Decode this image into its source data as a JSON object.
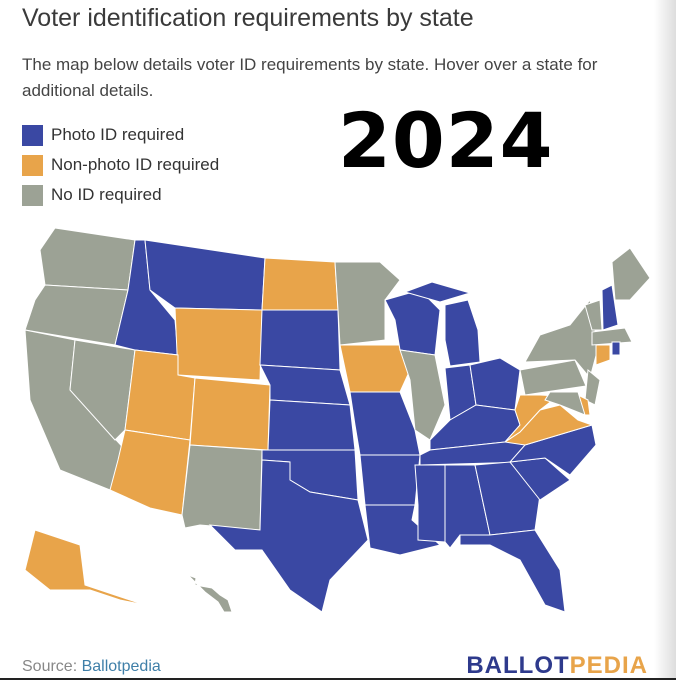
{
  "title": "Voter identification requirements by state",
  "subtitle": "The map below details voter ID requirements by state. Hover over a state for additional details.",
  "year_overlay": "2024",
  "legend": [
    {
      "key": "photo",
      "label": "Photo ID required",
      "color": "#3a48a3"
    },
    {
      "key": "nonphoto",
      "label": "Non-photo ID required",
      "color": "#e8a44a"
    },
    {
      "key": "none",
      "label": "No ID required",
      "color": "#9ca295"
    }
  ],
  "states": {
    "WA": "none",
    "OR": "none",
    "CA": "none",
    "NV": "none",
    "NM": "none",
    "MN": "none",
    "IL": "none",
    "PA": "none",
    "NY": "none",
    "VT": "none",
    "ME": "none",
    "MA": "none",
    "NJ": "none",
    "MD": "none",
    "HI": "none",
    "ND": "nonphoto",
    "WY": "nonphoto",
    "UT": "nonphoto",
    "CO": "nonphoto",
    "AZ": "nonphoto",
    "IA": "nonphoto",
    "WV": "nonphoto",
    "VA": "nonphoto",
    "CT": "nonphoto",
    "DE": "nonphoto",
    "AK": "nonphoto",
    "ID": "photo",
    "MT": "photo",
    "SD": "photo",
    "NE": "photo",
    "KS": "photo",
    "OK": "photo",
    "TX": "photo",
    "LA": "photo",
    "AR": "photo",
    "MO": "photo",
    "WI": "photo",
    "MI": "photo",
    "IN": "photo",
    "OH": "photo",
    "KY": "photo",
    "TN": "photo",
    "MS": "photo",
    "AL": "photo",
    "GA": "photo",
    "FL": "photo",
    "SC": "photo",
    "NC": "photo",
    "NH": "photo",
    "RI": "photo"
  },
  "source_label": "Source: ",
  "source_link": "Ballotpedia",
  "logo": {
    "part1": "BALLOT",
    "part2": "PEDIA",
    "color1": "#2e3a8c",
    "color2": "#e8a44a"
  }
}
